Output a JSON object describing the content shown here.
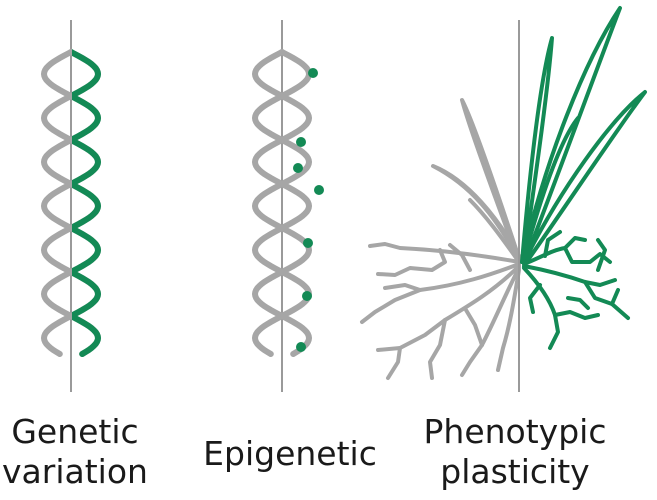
{
  "panels": [
    {
      "id": "genetic",
      "lines": [
        "Genetic",
        "variation"
      ]
    },
    {
      "id": "epigenetic",
      "lines": [
        "Epigenetic"
      ]
    },
    {
      "id": "phenotypic",
      "lines": [
        "Phenotypic",
        "plasticity"
      ]
    }
  ],
  "colors": {
    "gray": "#a6a6a6",
    "green": "#138a55",
    "axis": "#9a9a9a",
    "text": "#1a1a1a"
  },
  "icons": [
    "dna-helix-icon",
    "methylation-dot-icon",
    "plant-icon"
  ]
}
